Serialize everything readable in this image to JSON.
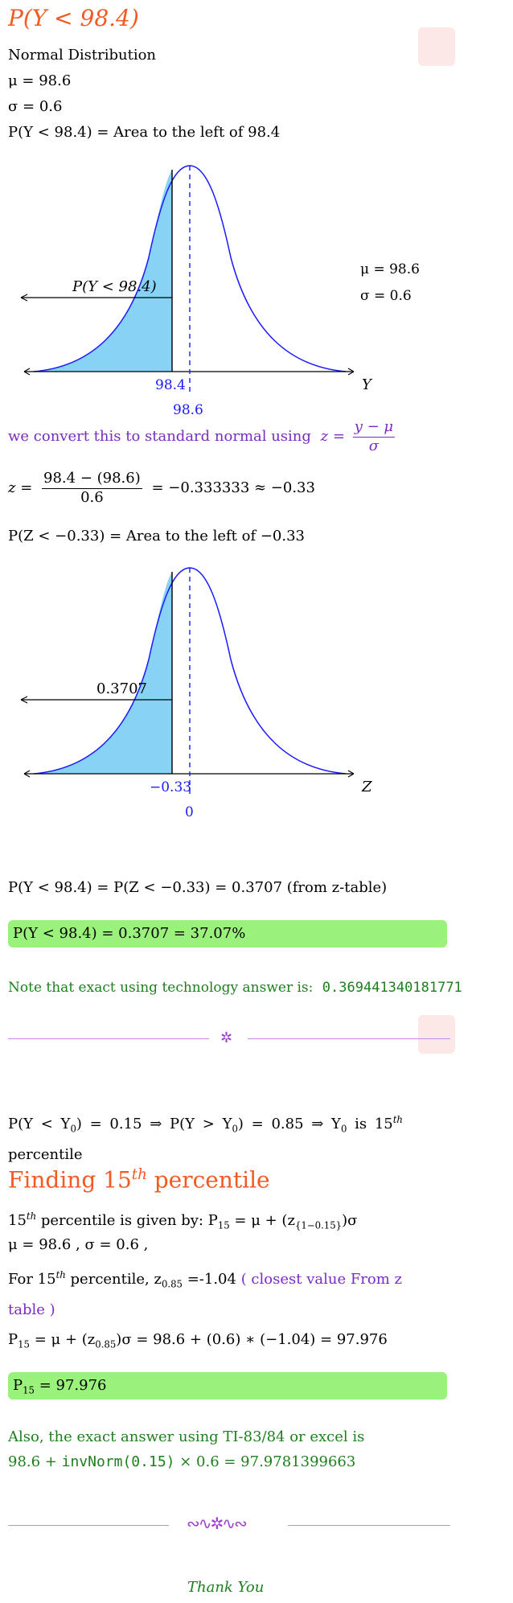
{
  "part1": {
    "title": "P(Y < 98.4)",
    "dist_name": "Normal Distribution",
    "mu_line": "μ = 98.6",
    "sigma_line": "σ = 0.6",
    "area_line": "P(Y < 98.4) = Area to the left of 98.4"
  },
  "graph1": {
    "area_label": "P(Y < 98.4)",
    "x_value_label": "98.4",
    "mean_label": "98.6",
    "axis_label": "Y",
    "params_mu": "μ = 98.6",
    "params_sigma": "σ = 0.6"
  },
  "conversion": {
    "text": "we convert this to standard normal using",
    "z_lhs": "z =",
    "z_num": "y − μ",
    "z_den": "σ",
    "calc_lhs": "z =",
    "calc_num": "98.4 − (98.6)",
    "calc_den": "0.6",
    "calc_rhs": "= −0.333333 ≈ −0.33",
    "area_line": "P(Z < −0.33) = Area to the left of −0.33"
  },
  "graph2": {
    "area_label": "0.3707",
    "x_value_label": "−0.33",
    "mean_label": "0",
    "axis_label": "Z"
  },
  "results1": {
    "eq_line": "P(Y < 98.4) = P(Z < −0.33) = 0.3707 (from z-table)",
    "answer": "P(Y < 98.4) = 0.3707 = 37.07%",
    "note_text": "Note that exact using technology answer is:",
    "note_value": "0.369441340181771"
  },
  "part2": {
    "intro_a": "P(Y < Y",
    "intro_sub0": "0",
    "intro_b": ") = 0.15 ⇒ P(Y > Y",
    "intro_sub1": "0",
    "intro_c": ") = 0.85 ⇒ Y",
    "intro_sub2": "0",
    "intro_d": " is 15",
    "intro_sup": "th",
    "intro_e": "percentile",
    "heading_a": "Finding 15",
    "heading_sup": "th",
    "heading_b": " percentile",
    "given_a": "15",
    "given_sup": "th",
    "given_b": " percentile is given by: P",
    "given_sub": "15",
    "given_c": " = μ + (z",
    "given_sub2": "{1−0.15}",
    "given_d": ")σ",
    "params": "μ = 98.6 , σ = 0.6 ,",
    "for_a": "For 15",
    "for_sup": "th",
    "for_b": " percentile, z",
    "for_sub": "0.85",
    "for_c": " =-1.04",
    "for_note": " ( closest value From z",
    "for_note2": "table )",
    "calc_a": "P",
    "calc_sub": "15",
    "calc_b": " = μ + (z",
    "calc_sub2": "0.85",
    "calc_c": ")σ = 98.6 + (0.6) ∗ (−1.04) = 97.976",
    "answer_a": "P",
    "answer_sub": "15",
    "answer_b": " = 97.976",
    "exact_line1": "Also, the exact answer using TI-83/84 or excel is",
    "exact_a": "98.6 + ",
    "exact_fn": "invNorm(0.15)",
    "exact_b": " × 0.6 = 97.9781399663",
    "thanks": "Thank You"
  },
  "colors": {
    "curve": "#1a1aff",
    "shade": "#87d3f5",
    "answer_bg": "#9af27c",
    "title": "#f25a22",
    "purple": "#7a2bc4",
    "green": "#1e7f1e"
  }
}
